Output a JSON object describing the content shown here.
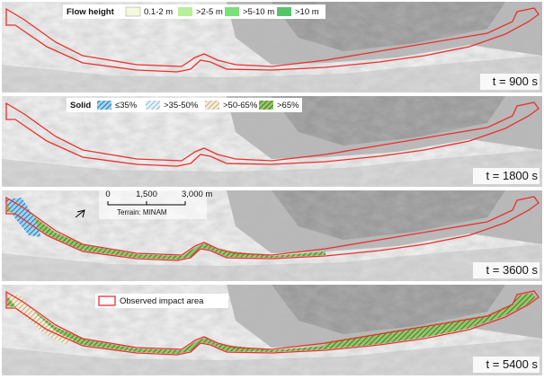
{
  "legend": {
    "flow_title": "Flow height",
    "flow_items": [
      "0.1-2 m",
      ">2-5 m",
      ">5-10 m",
      ">10 m"
    ],
    "solid_title": "Solid",
    "solid_items": [
      "≤35%",
      ">35-50%",
      ">50-65%",
      ">65%"
    ],
    "outline": "Observed impact area"
  },
  "scale_bar": {
    "labels": [
      "0",
      "1,500",
      "3,000 m"
    ],
    "terrain": "Terrain: MINAM"
  },
  "panels": [
    {
      "time": "t = 900 s"
    },
    {
      "time": "t = 1800 s"
    },
    {
      "time": "t = 3600 s"
    },
    {
      "time": "t = 5400 s"
    }
  ]
}
